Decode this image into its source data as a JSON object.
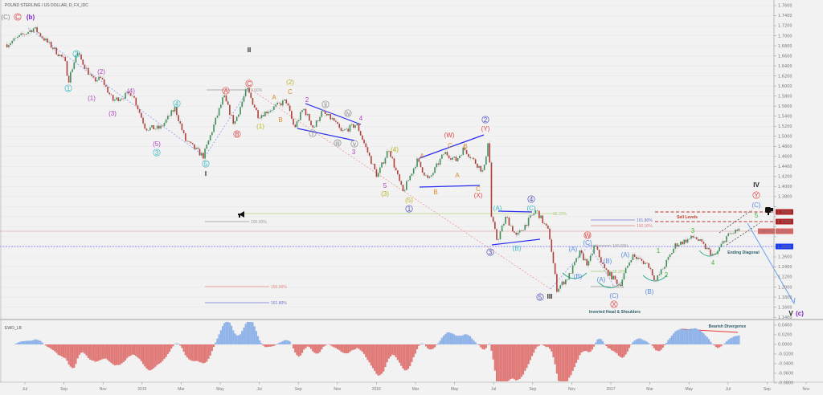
{
  "title": "POUND STERLING / US DOLLAR, D, FX_IDC",
  "indicator_name": "EWO_LB",
  "colors": {
    "up": "#3f8f5a",
    "down": "#b0403a",
    "wick": "#c8c8c8",
    "osc_pos": "#8fb3e8",
    "osc_neg": "#e07a78",
    "grid": "#e6e6e6"
  },
  "icons": [
    "megaphone-icon",
    "thumbs-down-icon"
  ],
  "chart_data": {
    "type": "candlestick",
    "y_axis": {
      "min": 1.14,
      "max": 1.76,
      "step": 0.02,
      "side": "right"
    },
    "x_ticks": [
      "Jul",
      "Sep",
      "Nov",
      "2015",
      "Mar",
      "May",
      "Jul",
      "Sep",
      "Nov",
      "2016",
      "Mar",
      "May",
      "Jul",
      "Sep",
      "Nov",
      "2017",
      "Mar",
      "May",
      "Jul",
      "Sep",
      "Nov"
    ],
    "price_path": [
      [
        "2014-06-03",
        1.683
      ],
      [
        "2014-07-15",
        1.715
      ],
      [
        "2014-09-01",
        1.651
      ],
      [
        "2014-09-07",
        1.611
      ],
      [
        "2014-09-20",
        1.667
      ],
      [
        "2014-10-15",
        1.611
      ],
      [
        "2014-10-28",
        1.615
      ],
      [
        "2014-11-15",
        1.571
      ],
      [
        "2014-12-15",
        1.587
      ],
      [
        "2015-01-05",
        1.516
      ],
      [
        "2015-01-28",
        1.516
      ],
      [
        "2015-02-20",
        1.556
      ],
      [
        "2015-03-08",
        1.492
      ],
      [
        "2015-04-05",
        1.46
      ],
      [
        "2015-05-07",
        1.58
      ],
      [
        "2015-05-23",
        1.524
      ],
      [
        "2015-06-12",
        1.595
      ],
      [
        "2015-06-30",
        1.54
      ],
      [
        "2015-08-12",
        1.571
      ],
      [
        "2015-08-25",
        1.516
      ],
      [
        "2015-09-08",
        1.556
      ],
      [
        "2015-09-24",
        1.516
      ],
      [
        "2015-10-06",
        1.548
      ],
      [
        "2015-10-25",
        1.532
      ],
      [
        "2015-11-06",
        1.508
      ],
      [
        "2015-11-30",
        1.524
      ],
      [
        "2016-01-01",
        1.42
      ],
      [
        "2016-01-19",
        1.476
      ],
      [
        "2016-02-10",
        1.388
      ],
      [
        "2016-03-03",
        1.452
      ],
      [
        "2016-03-21",
        1.412
      ],
      [
        "2016-04-15",
        1.468
      ],
      [
        "2016-05-03",
        1.452
      ],
      [
        "2016-05-15",
        1.476
      ],
      [
        "2016-06-15",
        1.428
      ],
      [
        "2016-06-23",
        1.503
      ],
      [
        "2016-06-27",
        1.34
      ],
      [
        "2016-07-06",
        1.292
      ],
      [
        "2016-07-20",
        1.34
      ],
      [
        "2016-08-05",
        1.3
      ],
      [
        "2016-09-05",
        1.353
      ],
      [
        "2016-09-25",
        1.308
      ],
      [
        "2016-10-07",
        1.196
      ],
      [
        "2016-10-25",
        1.22
      ],
      [
        "2016-11-12",
        1.268
      ],
      [
        "2016-11-25",
        1.244
      ],
      [
        "2016-12-05",
        1.284
      ],
      [
        "2016-12-20",
        1.236
      ],
      [
        "2017-01-13",
        1.204
      ],
      [
        "2017-02-01",
        1.263
      ],
      [
        "2017-02-27",
        1.244
      ],
      [
        "2017-03-10",
        1.212
      ],
      [
        "2017-03-28",
        1.252
      ],
      [
        "2017-04-10",
        1.284
      ],
      [
        "2017-05-10",
        1.3
      ],
      [
        "2017-06-10",
        1.26
      ],
      [
        "2017-06-28",
        1.3
      ],
      [
        "2017-07-20",
        1.316
      ]
    ],
    "price_tags": [
      {
        "text": "1.3500",
        "color": "#b22222"
      },
      {
        "text": "1.3300",
        "color": "#b22222"
      },
      {
        "symbol": "GBPUSD",
        "text": "1.3112",
        "color": "#e06666"
      },
      {
        "text": "1.2800",
        "color": "#1a3cff"
      }
    ],
    "oscillator": {
      "name": "EWO_LB",
      "ticks": [
        "0.0400",
        "0.0200",
        "0.0000",
        "-0.0200",
        "-0.0400",
        "-0.0600",
        "-0.0800"
      ]
    },
    "fib_labels": [
      "0.00%",
      "100.00%",
      "38.20%",
      "150.00%",
      "161.80%",
      "161.80%",
      "150.00%",
      "100.00%",
      "38.20%",
      "0.00%"
    ],
    "notes": [
      "Sell Levels",
      "Ending Diagonal",
      "Inverted Head & Shoulders",
      "Bearish Divergence"
    ],
    "wave_labels": [
      {
        "t": "(C)",
        "c": "#888"
      },
      {
        "t": "C",
        "c": "#e04848",
        "o": 1
      },
      {
        "t": "(b)",
        "c": "#7b22c8",
        "b": 1
      },
      {
        "t": "1",
        "c": "#35b8c4",
        "o": 1
      },
      {
        "t": "2",
        "c": "#35b8c4",
        "o": 1
      },
      {
        "t": "(1)",
        "c": "#b03fc0"
      },
      {
        "t": "(2)",
        "c": "#b03fc0"
      },
      {
        "t": "(3)",
        "c": "#b03fc0"
      },
      {
        "t": "(4)",
        "c": "#b03fc0"
      },
      {
        "t": "(5)",
        "c": "#b03fc0"
      },
      {
        "t": "3",
        "c": "#35b8c4",
        "o": 1
      },
      {
        "t": "4",
        "c": "#35b8c4",
        "o": 1
      },
      {
        "t": "5",
        "c": "#35b8c4",
        "o": 1
      },
      {
        "t": "I",
        "c": "#222",
        "b": 1
      },
      {
        "t": "A",
        "c": "#e04848",
        "o": 1
      },
      {
        "t": "B",
        "c": "#e04848",
        "o": 1
      },
      {
        "t": "C",
        "c": "#e04848",
        "o": 1
      },
      {
        "t": "II",
        "c": "#222",
        "b": 1
      },
      {
        "t": "(1)",
        "c": "#b5b520"
      },
      {
        "t": "A",
        "c": "#d88a2a"
      },
      {
        "t": "B",
        "c": "#d88a2a"
      },
      {
        "t": "(2)",
        "c": "#b5b520"
      },
      {
        "t": "C",
        "c": "#d88a2a"
      },
      {
        "t": "2",
        "c": "#b03fc0"
      },
      {
        "t": "i",
        "c": "#888",
        "o": 1
      },
      {
        "t": "ii",
        "c": "#888",
        "o": 1
      },
      {
        "t": "iii",
        "c": "#888",
        "o": 1
      },
      {
        "t": "iv",
        "c": "#888",
        "o": 1
      },
      {
        "t": "v",
        "c": "#888",
        "o": 1
      },
      {
        "t": "3",
        "c": "#b03fc0"
      },
      {
        "t": "4",
        "c": "#b03fc0"
      },
      {
        "t": "5",
        "c": "#b03fc0"
      },
      {
        "t": "(3)",
        "c": "#b5b520"
      },
      {
        "t": "(4)",
        "c": "#b5b520"
      },
      {
        "t": "(5)",
        "c": "#b5b520"
      },
      {
        "t": "1",
        "c": "#4a4ab8",
        "o": 1
      },
      {
        "t": "A",
        "c": "#d88a2a"
      },
      {
        "t": "B",
        "c": "#d88a2a"
      },
      {
        "t": "(W)",
        "c": "#e04848"
      },
      {
        "t": "C",
        "c": "#d88a2a"
      },
      {
        "t": "B",
        "c": "#d88a2a"
      },
      {
        "t": "A",
        "c": "#d88a2a"
      },
      {
        "t": "C",
        "c": "#d88a2a"
      },
      {
        "t": "(X)",
        "c": "#e04848"
      },
      {
        "t": "2",
        "c": "#4a4ab8",
        "o": 1
      },
      {
        "t": "(Y)",
        "c": "#e04848"
      },
      {
        "t": "(A)",
        "c": "#35b8c4"
      },
      {
        "t": "(C)",
        "c": "#35b8c4"
      },
      {
        "t": "4",
        "c": "#4a4ab8",
        "o": 1
      },
      {
        "t": "3",
        "c": "#4a4ab8",
        "o": 1
      },
      {
        "t": "(B)",
        "c": "#35b8c4"
      },
      {
        "t": "5",
        "c": "#4a4ab8",
        "o": 1
      },
      {
        "t": "III",
        "c": "#222",
        "b": 1
      },
      {
        "t": "W",
        "c": "#e04848",
        "o": 1
      },
      {
        "t": "(C)",
        "c": "#5a8de0"
      },
      {
        "t": "(A)",
        "c": "#5a8de0"
      },
      {
        "t": "(B)",
        "c": "#5a8de0"
      },
      {
        "t": "(B)",
        "c": "#5a8de0"
      },
      {
        "t": "(A)",
        "c": "#5a8de0"
      },
      {
        "t": "(C)",
        "c": "#5a8de0"
      },
      {
        "t": "X",
        "c": "#e04848",
        "o": 1
      },
      {
        "t": "(A)",
        "c": "#5a8de0"
      },
      {
        "t": "(B)",
        "c": "#5a8de0"
      },
      {
        "t": "1",
        "c": "#3cb83c"
      },
      {
        "t": "2",
        "c": "#3cb83c"
      },
      {
        "t": "3",
        "c": "#3cb83c"
      },
      {
        "t": "4",
        "c": "#3cb83c"
      },
      {
        "t": "5",
        "c": "#3cb83c"
      },
      {
        "t": "(C)",
        "c": "#5a8de0"
      },
      {
        "t": "Y",
        "c": "#e04848",
        "o": 1
      },
      {
        "t": "IV",
        "c": "#222",
        "b": 1
      },
      {
        "t": "V",
        "c": "#222",
        "b": 1
      },
      {
        "t": "(c)",
        "c": "#7b22c8",
        "b": 1
      }
    ]
  }
}
